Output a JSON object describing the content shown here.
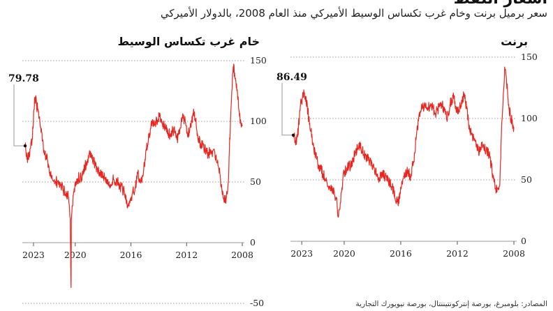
{
  "header": {
    "title": "أسعار النفط",
    "subtitle": "سعر برميل برنت وخام غرب تكساس الوسيط الأميركي منذ العام 2008، بالدولار الأميركي"
  },
  "source": "المصادر: بلومبرغ، بورصة إنتركونتيننتال، بورصة نيويورك التجارية",
  "colors": {
    "series": "#e8251e",
    "grid": "#9a9a9a",
    "axis": "#555555"
  },
  "chart_data": [
    {
      "type": "line",
      "title": "خام غرب تكساس الوسيط",
      "x_direction": "right-to-left",
      "x_ticks": [
        "2008",
        "2012",
        "2016",
        "2020",
        "2023"
      ],
      "xlim": [
        2008,
        2023.6
      ],
      "y_ticks": [
        -50,
        0,
        50,
        100,
        150
      ],
      "ylim": [
        -50,
        150
      ],
      "grid": true,
      "callout": {
        "label": "79.78",
        "value": 79.78
      },
      "series": [
        {
          "x": [
            2008.0,
            2008.2,
            2008.35,
            2008.45,
            2008.55,
            2008.65,
            2008.75,
            2008.85,
            2008.95,
            2009.0,
            2009.1,
            2009.2,
            2009.35,
            2009.5,
            2009.7,
            2009.9,
            2010.2,
            2010.5,
            2010.8,
            2011.0,
            2011.2,
            2011.35,
            2011.5,
            2011.7,
            2011.9,
            2012.1,
            2012.3,
            2012.5,
            2012.7,
            2012.9,
            2013.2,
            2013.5,
            2013.7,
            2013.9,
            2014.2,
            2014.5,
            2014.6,
            2014.75,
            2014.9,
            2015.1,
            2015.3,
            2015.5,
            2015.7,
            2015.9,
            2016.05,
            2016.2,
            2016.4,
            2016.6,
            2016.8,
            2017.0,
            2017.3,
            2017.6,
            2017.9,
            2018.2,
            2018.5,
            2018.8,
            2018.95,
            2019.2,
            2019.5,
            2019.8,
            2020.0,
            2020.1,
            2020.2,
            2020.28,
            2020.3,
            2020.33,
            2020.36,
            2020.5,
            2020.7,
            2020.9,
            2021.2,
            2021.5,
            2021.8,
            2022.0,
            2022.2,
            2022.35,
            2022.5,
            2022.7,
            2022.9,
            2023.1,
            2023.3,
            2023.45,
            2023.6
          ],
          "y": [
            96,
            104,
            125,
            132,
            140,
            145,
            125,
            100,
            70,
            50,
            41,
            35,
            36,
            48,
            62,
            71,
            76,
            73,
            80,
            82,
            88,
            102,
            110,
            95,
            90,
            100,
            103,
            90,
            85,
            93,
            89,
            94,
            98,
            105,
            100,
            97,
            94,
            84,
            76,
            58,
            49,
            57,
            45,
            40,
            36,
            30,
            40,
            44,
            47,
            51,
            52,
            47,
            54,
            58,
            63,
            69,
            74,
            66,
            55,
            53,
            50,
            42,
            30,
            18,
            -37,
            -10,
            20,
            38,
            40,
            45,
            48,
            52,
            58,
            68,
            73,
            85,
            95,
            110,
            120,
            85,
            73,
            70,
            80
          ]
        }
      ]
    },
    {
      "type": "line",
      "title": "برنت",
      "x_direction": "right-to-left",
      "x_ticks": [
        "2008",
        "2012",
        "2016",
        "2020",
        "2023"
      ],
      "xlim": [
        2008,
        2023.6
      ],
      "y_ticks": [
        0,
        50,
        100,
        150
      ],
      "ylim": [
        0,
        150
      ],
      "grid": true,
      "callout": {
        "label": "86.49",
        "value": 86.49
      },
      "series": [
        {
          "x": [
            2008.0,
            2008.2,
            2008.35,
            2008.45,
            2008.55,
            2008.65,
            2008.75,
            2008.85,
            2008.95,
            2009.0,
            2009.1,
            2009.2,
            2009.35,
            2009.5,
            2009.7,
            2009.9,
            2010.2,
            2010.5,
            2010.8,
            2011.0,
            2011.2,
            2011.35,
            2011.5,
            2011.7,
            2011.9,
            2012.1,
            2012.3,
            2012.5,
            2012.7,
            2012.9,
            2013.2,
            2013.5,
            2013.7,
            2013.9,
            2014.2,
            2014.5,
            2014.6,
            2014.75,
            2014.9,
            2015.1,
            2015.3,
            2015.5,
            2015.7,
            2015.9,
            2016.05,
            2016.2,
            2016.4,
            2016.6,
            2016.8,
            2017.0,
            2017.3,
            2017.6,
            2017.9,
            2018.2,
            2018.5,
            2018.8,
            2018.95,
            2019.2,
            2019.5,
            2019.8,
            2020.0,
            2020.1,
            2020.2,
            2020.3,
            2020.4,
            2020.5,
            2020.7,
            2020.9,
            2021.2,
            2021.5,
            2021.8,
            2022.0,
            2022.2,
            2022.35,
            2022.5,
            2022.7,
            2022.9,
            2023.1,
            2023.3,
            2023.45,
            2023.6
          ],
          "y": [
            93,
            100,
            108,
            122,
            135,
            142,
            120,
            98,
            65,
            45,
            42,
            40,
            46,
            55,
            68,
            74,
            77,
            74,
            82,
            88,
            95,
            108,
            120,
            115,
            107,
            110,
            118,
            112,
            100,
            108,
            112,
            105,
            108,
            110,
            108,
            110,
            105,
            98,
            85,
            65,
            52,
            58,
            55,
            48,
            40,
            31,
            35,
            45,
            48,
            52,
            55,
            50,
            60,
            65,
            70,
            75,
            80,
            72,
            62,
            60,
            55,
            50,
            40,
            26,
            20,
            30,
            40,
            43,
            47,
            55,
            62,
            70,
            78,
            90,
            100,
            118,
            120,
            110,
            85,
            82,
            86.49
          ]
        }
      ]
    }
  ]
}
